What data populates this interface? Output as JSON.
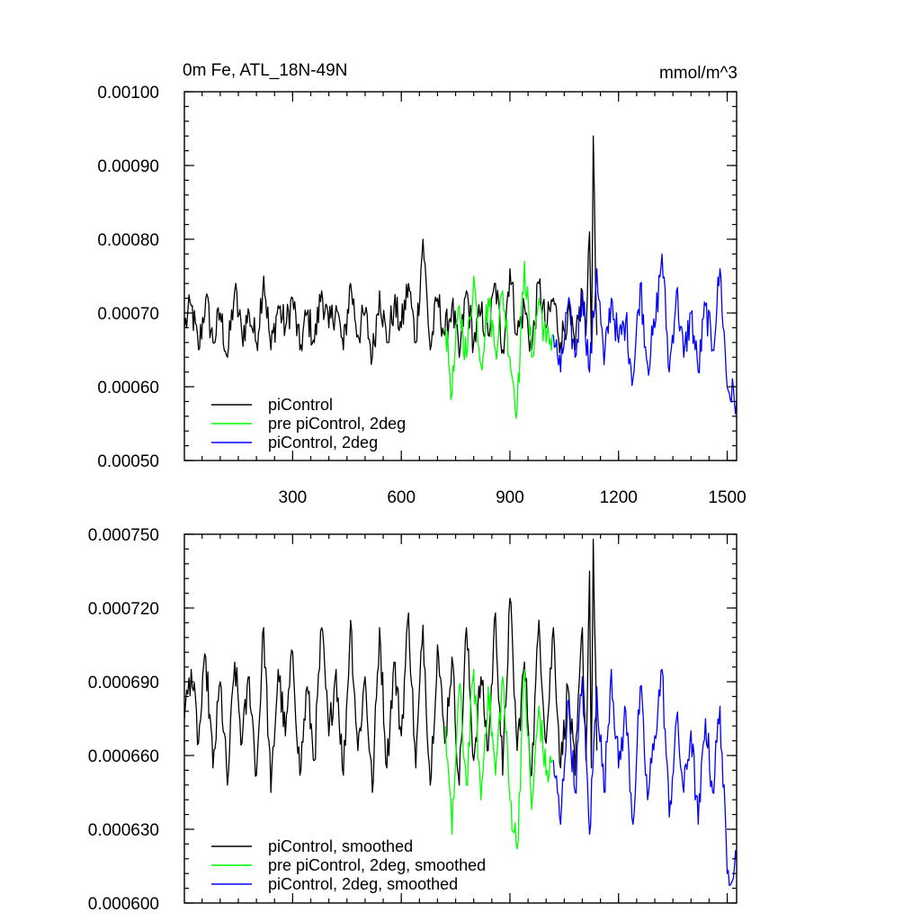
{
  "chart_data": [
    {
      "type": "line",
      "title": "0m Fe, ATL_18N-49N",
      "units": "mmol/m^3",
      "xlim": [
        1,
        1526
      ],
      "ylim": [
        0.0005,
        0.001
      ],
      "xticks": [
        300,
        600,
        900,
        1200,
        1500
      ],
      "xtick_labels": [
        "300",
        "600",
        "900",
        "1200",
        "1500"
      ],
      "yticks": [
        0.0005,
        0.0006,
        0.0007,
        0.0008,
        0.0009,
        0.001
      ],
      "ytick_labels": [
        "0.00050",
        "0.00060",
        "0.00070",
        "0.00080",
        "0.00090",
        "0.00100"
      ],
      "grid": false,
      "legend_position": "bottom-left",
      "series": [
        {
          "name": "piControl",
          "color": "#000000",
          "x": [
            1,
            20,
            40,
            60,
            80,
            100,
            120,
            140,
            160,
            180,
            200,
            220,
            240,
            260,
            280,
            300,
            320,
            340,
            360,
            380,
            400,
            420,
            440,
            460,
            480,
            500,
            520,
            540,
            560,
            580,
            600,
            620,
            640,
            660,
            680,
            700,
            720,
            740,
            760,
            780,
            800,
            820,
            840,
            860,
            880,
            900,
            920,
            940,
            960,
            980,
            1000,
            1020,
            1040,
            1060,
            1080,
            1100,
            1110,
            1120,
            1125,
            1130,
            1140
          ],
          "y": [
            0.00068,
            0.00071,
            0.00065,
            0.00072,
            0.00066,
            0.0007,
            0.00064,
            0.00073,
            0.00067,
            0.0007,
            0.00066,
            0.00075,
            0.00065,
            0.00071,
            0.00068,
            0.00072,
            0.00065,
            0.0007,
            0.00066,
            0.00073,
            0.00068,
            0.00071,
            0.00065,
            0.00074,
            0.00067,
            0.0007,
            0.00064,
            0.00073,
            0.00066,
            0.00071,
            0.00068,
            0.00074,
            0.00066,
            0.0008,
            0.00065,
            0.00072,
            0.00067,
            0.00071,
            0.00064,
            0.00073,
            0.00066,
            0.0007,
            0.00067,
            0.00074,
            0.00065,
            0.00076,
            0.00067,
            0.00071,
            0.00065,
            0.00074,
            0.00068,
            0.00072,
            0.00066,
            0.0007,
            0.00065,
            0.00073,
            0.00067,
            0.00081,
            0.00066,
            0.00094,
            0.00067
          ]
        },
        {
          "name": "pre piControl, 2deg",
          "color": "#00ff00",
          "x": [
            722,
            740,
            760,
            780,
            800,
            820,
            840,
            860,
            880,
            900,
            920,
            940,
            960,
            980,
            1000,
            1020
          ],
          "y": [
            0.00068,
            0.00059,
            0.00071,
            0.00064,
            0.00075,
            0.00063,
            0.00072,
            0.00065,
            0.00073,
            0.00064,
            0.00057,
            0.00077,
            0.00064,
            0.00072,
            0.00066,
            0.00067
          ]
        },
        {
          "name": "piControl, 2deg",
          "color": "#0000ff",
          "x": [
            1020,
            1040,
            1060,
            1080,
            1100,
            1120,
            1140,
            1160,
            1180,
            1200,
            1220,
            1240,
            1260,
            1280,
            1300,
            1320,
            1340,
            1360,
            1380,
            1400,
            1420,
            1440,
            1460,
            1480,
            1500,
            1526
          ],
          "y": [
            0.00067,
            0.00062,
            0.00071,
            0.00064,
            0.00073,
            0.00062,
            0.00076,
            0.00063,
            0.00072,
            0.00066,
            0.00069,
            0.00061,
            0.00074,
            0.00063,
            0.00068,
            0.00078,
            0.00062,
            0.00073,
            0.00064,
            0.0007,
            0.00062,
            0.00071,
            0.00065,
            0.00076,
            0.0006,
            0.00058
          ]
        }
      ]
    },
    {
      "type": "line",
      "xlim": [
        1,
        1526
      ],
      "ylim": [
        0.0006,
        0.00075
      ],
      "xticks": [
        300,
        600,
        900,
        1200,
        1500
      ],
      "yticks": [
        0.0006,
        0.00063,
        0.00066,
        0.00069,
        0.00072,
        0.00075
      ],
      "ytick_labels": [
        "0.000600",
        "0.000630",
        "0.000660",
        "0.000690",
        "0.000720",
        "0.000750"
      ],
      "grid": false,
      "legend_position": "bottom-left",
      "series": [
        {
          "name": "piControl, smoothed",
          "color": "#000000",
          "x": [
            1,
            20,
            40,
            60,
            80,
            100,
            120,
            140,
            160,
            180,
            200,
            220,
            240,
            260,
            280,
            300,
            320,
            340,
            360,
            380,
            400,
            420,
            440,
            460,
            480,
            500,
            520,
            540,
            560,
            580,
            600,
            620,
            640,
            660,
            680,
            700,
            720,
            740,
            760,
            780,
            800,
            820,
            840,
            860,
            880,
            900,
            920,
            940,
            960,
            980,
            1000,
            1020,
            1040,
            1060,
            1080,
            1100,
            1110,
            1120,
            1125,
            1130,
            1140
          ],
          "y": [
            0.000675,
            0.000695,
            0.000665,
            0.0007,
            0.000655,
            0.00069,
            0.000648,
            0.000698,
            0.000665,
            0.000692,
            0.000652,
            0.000712,
            0.000645,
            0.000695,
            0.000668,
            0.000702,
            0.000652,
            0.000688,
            0.000658,
            0.000712,
            0.000668,
            0.000695,
            0.000652,
            0.000715,
            0.000662,
            0.000692,
            0.000645,
            0.000712,
            0.000655,
            0.000698,
            0.000668,
            0.000718,
            0.000655,
            0.000713,
            0.000648,
            0.000705,
            0.000665,
            0.0007,
            0.000648,
            0.000712,
            0.000658,
            0.000692,
            0.000662,
            0.000718,
            0.000652,
            0.000724,
            0.000662,
            0.000698,
            0.000652,
            0.000715,
            0.000665,
            0.000712,
            0.000655,
            0.000688,
            0.000652,
            0.000712,
            0.000658,
            0.000735,
            0.000655,
            0.000748,
            0.000662
          ]
        },
        {
          "name": "pre piControl, 2deg, smoothed",
          "color": "#00ff00",
          "x": [
            722,
            740,
            760,
            780,
            800,
            820,
            840,
            860,
            880,
            900,
            920,
            940,
            960,
            980,
            1000,
            1020
          ],
          "y": [
            0.000672,
            0.000628,
            0.000688,
            0.000648,
            0.000695,
            0.000642,
            0.000688,
            0.000652,
            0.000692,
            0.000642,
            0.000622,
            0.000695,
            0.000638,
            0.00068,
            0.000652,
            0.000658
          ]
        },
        {
          "name": "piControl, 2deg, smoothed",
          "color": "#0000ff",
          "x": [
            1020,
            1040,
            1060,
            1080,
            1100,
            1120,
            1140,
            1160,
            1180,
            1200,
            1220,
            1240,
            1260,
            1280,
            1300,
            1320,
            1340,
            1360,
            1380,
            1400,
            1420,
            1440,
            1460,
            1480,
            1500,
            1526
          ],
          "y": [
            0.000658,
            0.000632,
            0.000682,
            0.000645,
            0.000692,
            0.000628,
            0.000688,
            0.000645,
            0.000695,
            0.000655,
            0.000678,
            0.000632,
            0.000688,
            0.000642,
            0.000668,
            0.000695,
            0.000635,
            0.000675,
            0.000645,
            0.00067,
            0.000632,
            0.000675,
            0.000645,
            0.00068,
            0.000612,
            0.000618
          ]
        }
      ]
    }
  ]
}
